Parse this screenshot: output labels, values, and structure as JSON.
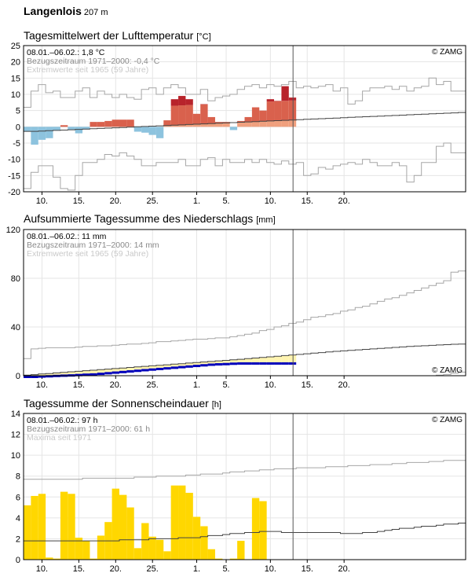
{
  "station": {
    "name": "Langenlois",
    "altitude": "207 m"
  },
  "x_ticks": [
    "10.",
    "15.",
    "20.",
    "25.",
    "1.",
    "5.",
    "10.",
    "15.",
    "20."
  ],
  "colors": {
    "warm_light": "#f0a07e",
    "warm_mid": "#d9614d",
    "warm_dark": "#b8232b",
    "cold": "#8dc3de",
    "precip_bar": "#0000bb",
    "precip_norm": "#fff4b0",
    "sun": "#ffd700",
    "grid": "#e5e5e5",
    "envelope": "#a6a6a6",
    "ref_line": "#444444"
  },
  "chart_data": [
    {
      "type": "bar",
      "title": "Tagesmittelwert der Lufttemperatur",
      "unit": "[°C]",
      "ylim": [
        -20,
        25
      ],
      "y_ticks": [
        "25",
        "20",
        "15",
        "10",
        "5",
        "0",
        "-5",
        "-10",
        "-15",
        "-20"
      ],
      "legend": [
        "08.01.–06.02.: 1,8 °C",
        "Bezugszeitraum 1971–2000: -0,4 °C",
        "Extremwerte seit 1965 (59 Jahre)"
      ],
      "copyright": "© ZAMG",
      "series": [
        {
          "name": "Tagesmittel",
          "values": [
            -1.5,
            -5.5,
            -4,
            -3.5,
            -1,
            0.5,
            -1,
            -2,
            -0.8,
            1.5,
            1.5,
            1.8,
            2.2,
            2.2,
            2.2,
            -1.5,
            -1.8,
            -2.5,
            -3.5,
            2,
            8.5,
            9.5,
            8.5,
            4,
            7,
            3,
            1.5,
            1.5,
            -1,
            1.8,
            3,
            6,
            5,
            8.5,
            8,
            12.5,
            9
          ]
        },
        {
          "name": "Normal",
          "values": [
            -1.4,
            -1.4,
            -1.3,
            -1.2,
            -1.1,
            -1.0,
            -0.9,
            -0.8,
            -0.7,
            -0.6,
            -0.5,
            -0.4,
            -0.3,
            -0.2,
            -0.1,
            0.0,
            0.1,
            0.2,
            0.3,
            0.4,
            0.5,
            0.6,
            0.7,
            0.8,
            0.9,
            1.0,
            1.1,
            1.2,
            1.3,
            1.4,
            1.5,
            1.6,
            1.7,
            1.8,
            1.9,
            2.0,
            2.1,
            2.2,
            2.3,
            2.4,
            2.5,
            2.6,
            2.7,
            2.8,
            2.9,
            3.0,
            3.1,
            3.2,
            3.3,
            3.4,
            3.5,
            3.6,
            3.7,
            3.8,
            3.9,
            4.0,
            4.1,
            4.2,
            4.3,
            4.4
          ]
        },
        {
          "name": "Maximum",
          "values": [
            6,
            11,
            13,
            10.5,
            11,
            9,
            9,
            11,
            12,
            9,
            11,
            10,
            9,
            10,
            9,
            8.5,
            11.5,
            12,
            10,
            12,
            13,
            12,
            10,
            10,
            11.5,
            8,
            9,
            9.5,
            10,
            11.5,
            12.5,
            13,
            12,
            13,
            12.5,
            13,
            14,
            12,
            12.5,
            12,
            12.5,
            13,
            11,
            12,
            7,
            8,
            11,
            12,
            12,
            12.5,
            11.5,
            12.5,
            11,
            12,
            12.5,
            15,
            13,
            14,
            11,
            11
          ]
        },
        {
          "name": "Minimum",
          "values": [
            -19,
            -14,
            -12,
            -12,
            -15.5,
            -19,
            -19.5,
            -15,
            -11,
            -11,
            -10,
            -8.5,
            -9,
            -8,
            -9,
            -10,
            -12,
            -12,
            -11,
            -11,
            -11,
            -10,
            -12,
            -12,
            -10,
            -9.5,
            -12,
            -10,
            -11,
            -11,
            -10,
            -11,
            -10,
            -11,
            -11.5,
            -10.5,
            -11.5,
            -11,
            -15,
            -14.5,
            -12.5,
            -13,
            -12,
            -11.5,
            -11,
            -11.5,
            -10,
            -11,
            -12,
            -12,
            -11,
            -12,
            -17,
            -15,
            -11,
            -11,
            -6,
            -5,
            -8,
            -8
          ]
        }
      ]
    },
    {
      "type": "line",
      "title": "Aufsummierte Tagessumme des Niederschlags",
      "unit": "[mm]",
      "ylim": [
        0,
        120
      ],
      "y_ticks": [
        "120",
        "80",
        "40",
        "0"
      ],
      "legend": [
        "08.01.–06.02.: 11 mm",
        "Bezugszeitraum 1971–2000: 14 mm",
        "Extremwerte seit 1965 (59 Jahre)"
      ],
      "copyright": "© ZAMG",
      "series": [
        {
          "name": "Summe",
          "values": [
            0,
            0,
            0.3,
            0.5,
            0.8,
            1,
            1.2,
            1.5,
            1.8,
            2,
            2.5,
            3,
            3.5,
            4,
            4.5,
            5,
            5.5,
            6,
            6.5,
            7,
            7.5,
            8,
            8.5,
            9,
            9.5,
            10,
            10.3,
            10.5,
            10.8,
            11,
            11,
            11,
            11,
            11,
            11,
            11,
            11
          ]
        },
        {
          "name": "Normal",
          "values": [
            0.5,
            0.9,
            1.4,
            1.8,
            2.3,
            2.7,
            3.2,
            3.6,
            4.1,
            4.5,
            5.0,
            5.4,
            5.9,
            6.3,
            6.8,
            7.2,
            7.7,
            8.1,
            8.6,
            9.0,
            9.5,
            9.9,
            10.4,
            10.8,
            11.3,
            11.7,
            12.2,
            12.6,
            13.1,
            13.5,
            14.0,
            14.5,
            15.0,
            15.5,
            16.0,
            16.5,
            17.0,
            17.5,
            18.0,
            18.5,
            19.0,
            19.5,
            20.0,
            20.4,
            20.8,
            21.2,
            21.6,
            22.0,
            22.4,
            22.8,
            23.2,
            23.6,
            24.0,
            24.3,
            24.6,
            24.9,
            25.2,
            25.5,
            25.8,
            26.0
          ]
        },
        {
          "name": "Maximum",
          "values": [
            14,
            22,
            22.5,
            23,
            23,
            23,
            23,
            23.5,
            24,
            24,
            24.5,
            24.5,
            25,
            25.5,
            26,
            26,
            26.5,
            27,
            28,
            28,
            28.5,
            29,
            29.5,
            30,
            30,
            30.5,
            31,
            31,
            32,
            33,
            34,
            35,
            37,
            38,
            40,
            41,
            43,
            44,
            46,
            48,
            48.5,
            50,
            51,
            53,
            54,
            56,
            57,
            59,
            61,
            63,
            64,
            66,
            68,
            70,
            72,
            74,
            76,
            78,
            85,
            86
          ]
        },
        {
          "name": "Minimum",
          "values": [
            0,
            0,
            0,
            0,
            0,
            0,
            0,
            0,
            0,
            0,
            0,
            0,
            0,
            0,
            0,
            0,
            0,
            0,
            0,
            0,
            0,
            0,
            0,
            0,
            0,
            0,
            0,
            0,
            0,
            0,
            0,
            0,
            0,
            0,
            0,
            0,
            0,
            0,
            0,
            0,
            0,
            0,
            0,
            0,
            0,
            0,
            0,
            0,
            0,
            0,
            0,
            0,
            0,
            0,
            0,
            0,
            0.5,
            1,
            2,
            3
          ]
        }
      ]
    },
    {
      "type": "bar",
      "title": "Tagessumme der Sonnenscheindauer",
      "unit": "[h]",
      "ylim": [
        0,
        14
      ],
      "y_ticks": [
        "14",
        "12",
        "10",
        "8",
        "6",
        "4",
        "2",
        "0"
      ],
      "legend": [
        "08.01.–06.02.: 97 h",
        "Bezugszeitraum 1971–2000: 61 h",
        "Maxima seit 1971"
      ],
      "copyright": "© ZAMG",
      "series": [
        {
          "name": "Sonnenschein",
          "values": [
            5.2,
            6.1,
            6.3,
            0.2,
            0.1,
            6.5,
            6.3,
            2.1,
            1.8,
            0.1,
            2.3,
            3.6,
            6.8,
            6.2,
            5.0,
            1.1,
            3.5,
            2.2,
            1.9,
            0.8,
            7.1,
            7.1,
            6.4,
            4.1,
            3.2,
            1.0,
            0.1,
            0,
            0.1,
            1.8,
            0,
            5.9,
            5.6,
            0,
            0,
            0,
            0
          ]
        },
        {
          "name": "Normal",
          "values": [
            1.8,
            1.8,
            1.8,
            1.8,
            1.8,
            1.8,
            1.8,
            1.8,
            1.8,
            1.8,
            1.8,
            1.8,
            1.8,
            1.9,
            1.9,
            1.9,
            1.9,
            2.0,
            2.0,
            2.0,
            2.0,
            2.1,
            2.1,
            2.1,
            2.2,
            2.3,
            2.3,
            2.4,
            2.5,
            2.5,
            2.6,
            2.6,
            2.7,
            2.7,
            2.7,
            2.6,
            2.6,
            2.6,
            2.6,
            2.6,
            2.6,
            2.6,
            2.6,
            2.5,
            2.5,
            2.5,
            2.6,
            2.6,
            2.7,
            2.8,
            2.9,
            3.0,
            3.0,
            3.1,
            3.2,
            3.2,
            3.3,
            3.4,
            3.4,
            3.5
          ]
        },
        {
          "name": "Maxima",
          "values": [
            7.7,
            7.7,
            7.7,
            7.7,
            7.7,
            7.7,
            7.7,
            7.7,
            7.8,
            7.8,
            7.8,
            7.8,
            7.8,
            7.8,
            7.8,
            7.9,
            7.9,
            7.9,
            8.0,
            8.0,
            8.0,
            8.0,
            8.1,
            8.1,
            8.2,
            8.2,
            8.2,
            8.3,
            8.4,
            8.4,
            8.5,
            8.5,
            8.6,
            8.6,
            8.7,
            8.7,
            8.7,
            8.8,
            8.8,
            8.8,
            8.8,
            8.9,
            8.9,
            8.9,
            9.0,
            9.0,
            9.0,
            9.1,
            9.1,
            9.1,
            9.2,
            9.2,
            9.3,
            9.3,
            9.3,
            9.4,
            9.4,
            9.5,
            9.5,
            9.5
          ]
        }
      ]
    }
  ]
}
